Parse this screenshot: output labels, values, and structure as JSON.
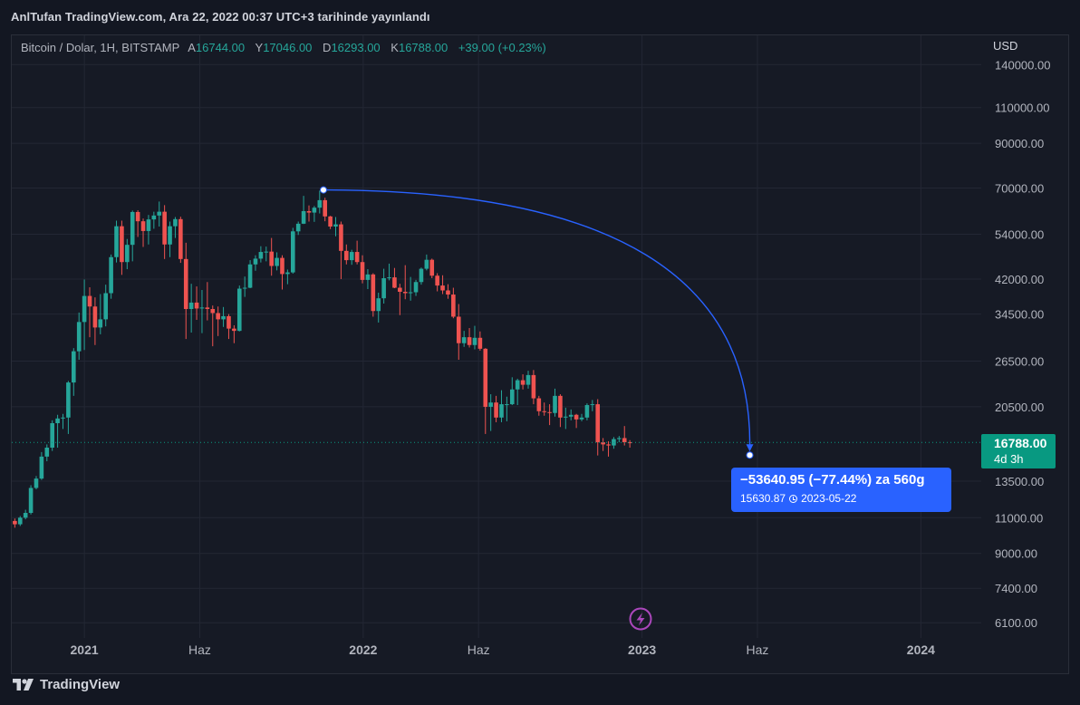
{
  "header": {
    "published_text": "AnlTufan TradingView.com, Ara 22, 2022 00:37 UTC+3 tarihinde yayınlandı"
  },
  "legend": {
    "symbol": "Bitcoin / Dolar, 1H, BITSTAMP",
    "open_label": "A",
    "open": "16744.00",
    "high_label": "Y",
    "high": "17046.00",
    "low_label": "D",
    "low": "16293.00",
    "close_label": "K",
    "close": "16788.00",
    "change": "+39.00 (+0.23%)"
  },
  "price_axis": {
    "currency": "USD",
    "ticks": [
      "140000.00",
      "110000.00",
      "90000.00",
      "70000.00",
      "54000.00",
      "42000.00",
      "34500.00",
      "26500.00",
      "20500.00",
      "13500.00",
      "11000.00",
      "9000.00",
      "7400.00",
      "6100.00"
    ]
  },
  "time_axis": {
    "ticks": [
      "2021",
      "Haz",
      "2022",
      "Haz",
      "2023",
      "Haz",
      "2024"
    ]
  },
  "last_price": {
    "price": "16788.00",
    "countdown": "4d 3h"
  },
  "projection": {
    "change_text": "−53640.95 (−77.44%) za 560g",
    "target_price": "15630.87",
    "target_date": "2023-05-22",
    "from_price": 69271.82,
    "from_date": "2021-11-10"
  },
  "brand": {
    "name": "TradingView"
  },
  "colors": {
    "up": "#26a69a",
    "down": "#ef5350",
    "background": "#161a25",
    "arc": "#2962ff",
    "last_price_badge": "#089981",
    "flash_icon": "#9c27b0"
  },
  "chart_data": {
    "type": "candlestick",
    "title": "Bitcoin / Dolar, 1H, BITSTAMP",
    "y_scale": "log",
    "ylim": [
      5600,
      165000
    ],
    "xlim": [
      "2020-09-28",
      "2024-03-20"
    ],
    "candles": [
      {
        "d": "2020-10-02",
        "o": 10800,
        "h": 10950,
        "l": 10400,
        "c": 10600
      },
      {
        "d": "2020-10-09",
        "o": 10600,
        "h": 11100,
        "l": 10500,
        "c": 11000
      },
      {
        "d": "2020-10-16",
        "o": 11000,
        "h": 11500,
        "l": 10900,
        "c": 11300
      },
      {
        "d": "2020-10-23",
        "o": 11300,
        "h": 13200,
        "l": 11200,
        "c": 13000
      },
      {
        "d": "2020-10-30",
        "o": 13000,
        "h": 13900,
        "l": 12900,
        "c": 13700
      },
      {
        "d": "2020-11-06",
        "o": 13700,
        "h": 15900,
        "l": 13600,
        "c": 15500
      },
      {
        "d": "2020-11-13",
        "o": 15500,
        "h": 16600,
        "l": 15100,
        "c": 16300
      },
      {
        "d": "2020-11-20",
        "o": 16300,
        "h": 19000,
        "l": 16000,
        "c": 18700
      },
      {
        "d": "2020-11-27",
        "o": 18700,
        "h": 19600,
        "l": 16300,
        "c": 19200
      },
      {
        "d": "2020-12-04",
        "o": 19200,
        "h": 19700,
        "l": 18100,
        "c": 19300
      },
      {
        "d": "2020-12-11",
        "o": 19300,
        "h": 23700,
        "l": 17600,
        "c": 23500
      },
      {
        "d": "2020-12-18",
        "o": 23500,
        "h": 28500,
        "l": 21800,
        "c": 28000
      },
      {
        "d": "2020-12-25",
        "o": 28000,
        "h": 34800,
        "l": 26700,
        "c": 33000
      },
      {
        "d": "2021-01-01",
        "o": 33000,
        "h": 41900,
        "l": 28200,
        "c": 38200
      },
      {
        "d": "2021-01-08",
        "o": 38200,
        "h": 40100,
        "l": 30300,
        "c": 36000
      },
      {
        "d": "2021-01-15",
        "o": 36000,
        "h": 37900,
        "l": 29000,
        "c": 32000
      },
      {
        "d": "2021-01-22",
        "o": 32000,
        "h": 38600,
        "l": 30800,
        "c": 33500
      },
      {
        "d": "2021-01-29",
        "o": 33500,
        "h": 40700,
        "l": 32200,
        "c": 38800
      },
      {
        "d": "2021-02-05",
        "o": 38800,
        "h": 48200,
        "l": 37600,
        "c": 47500
      },
      {
        "d": "2021-02-12",
        "o": 47500,
        "h": 58300,
        "l": 46100,
        "c": 56500
      },
      {
        "d": "2021-02-19",
        "o": 56500,
        "h": 58300,
        "l": 43000,
        "c": 46200
      },
      {
        "d": "2021-02-26",
        "o": 46200,
        "h": 52600,
        "l": 44400,
        "c": 50900
      },
      {
        "d": "2021-03-05",
        "o": 50900,
        "h": 61700,
        "l": 46400,
        "c": 61200
      },
      {
        "d": "2021-03-12",
        "o": 61200,
        "h": 61800,
        "l": 53200,
        "c": 58100
      },
      {
        "d": "2021-03-19",
        "o": 58100,
        "h": 59000,
        "l": 50300,
        "c": 55000
      },
      {
        "d": "2021-03-26",
        "o": 55000,
        "h": 60200,
        "l": 51000,
        "c": 58700
      },
      {
        "d": "2021-04-02",
        "o": 58700,
        "h": 61300,
        "l": 55700,
        "c": 60000
      },
      {
        "d": "2021-04-09",
        "o": 60000,
        "h": 64900,
        "l": 56400,
        "c": 61300
      },
      {
        "d": "2021-04-16",
        "o": 61300,
        "h": 63600,
        "l": 47000,
        "c": 51000
      },
      {
        "d": "2021-04-23",
        "o": 51000,
        "h": 58000,
        "l": 47500,
        "c": 56500
      },
      {
        "d": "2021-04-30",
        "o": 56500,
        "h": 59500,
        "l": 52900,
        "c": 58800
      },
      {
        "d": "2021-05-07",
        "o": 58800,
        "h": 59600,
        "l": 46000,
        "c": 47000
      },
      {
        "d": "2021-05-14",
        "o": 47000,
        "h": 51500,
        "l": 30000,
        "c": 35500
      },
      {
        "d": "2021-05-21",
        "o": 35500,
        "h": 40900,
        "l": 31100,
        "c": 36800
      },
      {
        "d": "2021-05-28",
        "o": 36800,
        "h": 40300,
        "l": 33400,
        "c": 35600
      },
      {
        "d": "2021-06-04",
        "o": 35600,
        "h": 39500,
        "l": 31000,
        "c": 35800
      },
      {
        "d": "2021-06-11",
        "o": 35800,
        "h": 41300,
        "l": 33300,
        "c": 35500
      },
      {
        "d": "2021-06-18",
        "o": 35500,
        "h": 36200,
        "l": 28800,
        "c": 34700
      },
      {
        "d": "2021-06-25",
        "o": 34700,
        "h": 36000,
        "l": 30500,
        "c": 33500
      },
      {
        "d": "2021-07-02",
        "o": 33500,
        "h": 35900,
        "l": 32100,
        "c": 34100
      },
      {
        "d": "2021-07-09",
        "o": 34100,
        "h": 34500,
        "l": 30000,
        "c": 31800
      },
      {
        "d": "2021-07-16",
        "o": 31800,
        "h": 32400,
        "l": 29300,
        "c": 31400
      },
      {
        "d": "2021-07-23",
        "o": 31400,
        "h": 40500,
        "l": 31300,
        "c": 39800
      },
      {
        "d": "2021-07-30",
        "o": 39800,
        "h": 42600,
        "l": 38000,
        "c": 40000
      },
      {
        "d": "2021-08-06",
        "o": 40000,
        "h": 46700,
        "l": 39900,
        "c": 45600
      },
      {
        "d": "2021-08-13",
        "o": 45600,
        "h": 48000,
        "l": 44000,
        "c": 47100
      },
      {
        "d": "2021-08-20",
        "o": 47100,
        "h": 50500,
        "l": 46100,
        "c": 48900
      },
      {
        "d": "2021-08-27",
        "o": 48900,
        "h": 50400,
        "l": 46400,
        "c": 49000
      },
      {
        "d": "2021-09-03",
        "o": 49000,
        "h": 52900,
        "l": 42800,
        "c": 45200
      },
      {
        "d": "2021-09-10",
        "o": 45200,
        "h": 48800,
        "l": 44100,
        "c": 47300
      },
      {
        "d": "2021-09-17",
        "o": 47300,
        "h": 48000,
        "l": 39600,
        "c": 43200
      },
      {
        "d": "2021-09-24",
        "o": 43200,
        "h": 44300,
        "l": 40800,
        "c": 43600
      },
      {
        "d": "2021-10-01",
        "o": 43600,
        "h": 56000,
        "l": 43300,
        "c": 54900
      },
      {
        "d": "2021-10-08",
        "o": 54900,
        "h": 58000,
        "l": 53800,
        "c": 57300
      },
      {
        "d": "2021-10-15",
        "o": 57300,
        "h": 67000,
        "l": 57200,
        "c": 61500
      },
      {
        "d": "2021-10-22",
        "o": 61500,
        "h": 63500,
        "l": 58000,
        "c": 61000
      },
      {
        "d": "2021-10-29",
        "o": 61000,
        "h": 63300,
        "l": 57900,
        "c": 62700
      },
      {
        "d": "2021-11-05",
        "o": 62700,
        "h": 69000,
        "l": 60700,
        "c": 65400
      },
      {
        "d": "2021-11-12",
        "o": 65400,
        "h": 66300,
        "l": 58100,
        "c": 59700
      },
      {
        "d": "2021-11-19",
        "o": 59700,
        "h": 59900,
        "l": 55600,
        "c": 56400
      },
      {
        "d": "2021-11-26",
        "o": 56400,
        "h": 59500,
        "l": 53400,
        "c": 57100
      },
      {
        "d": "2021-12-03",
        "o": 57100,
        "h": 58000,
        "l": 42000,
        "c": 49200
      },
      {
        "d": "2021-12-10",
        "o": 49200,
        "h": 51000,
        "l": 45600,
        "c": 46700
      },
      {
        "d": "2021-12-17",
        "o": 46700,
        "h": 49500,
        "l": 45500,
        "c": 48900
      },
      {
        "d": "2021-12-24",
        "o": 48900,
        "h": 52100,
        "l": 45600,
        "c": 46200
      },
      {
        "d": "2021-12-31",
        "o": 46200,
        "h": 48000,
        "l": 41000,
        "c": 41800
      },
      {
        "d": "2022-01-07",
        "o": 41800,
        "h": 44400,
        "l": 39700,
        "c": 43100
      },
      {
        "d": "2022-01-14",
        "o": 43100,
        "h": 43400,
        "l": 34000,
        "c": 35100
      },
      {
        "d": "2022-01-21",
        "o": 35100,
        "h": 38900,
        "l": 32900,
        "c": 37700
      },
      {
        "d": "2022-01-28",
        "o": 37700,
        "h": 44500,
        "l": 36600,
        "c": 42200
      },
      {
        "d": "2022-02-04",
        "o": 42200,
        "h": 45800,
        "l": 41700,
        "c": 42400
      },
      {
        "d": "2022-02-11",
        "o": 42400,
        "h": 44700,
        "l": 39900,
        "c": 40000
      },
      {
        "d": "2022-02-18",
        "o": 40000,
        "h": 40900,
        "l": 34300,
        "c": 39100
      },
      {
        "d": "2022-02-25",
        "o": 39100,
        "h": 45400,
        "l": 37500,
        "c": 38800
      },
      {
        "d": "2022-03-04",
        "o": 38800,
        "h": 42500,
        "l": 37200,
        "c": 39000
      },
      {
        "d": "2022-03-11",
        "o": 39000,
        "h": 41800,
        "l": 38200,
        "c": 41300
      },
      {
        "d": "2022-03-18",
        "o": 41300,
        "h": 44800,
        "l": 40700,
        "c": 44500
      },
      {
        "d": "2022-03-25",
        "o": 44500,
        "h": 48200,
        "l": 44100,
        "c": 46800
      },
      {
        "d": "2022-04-01",
        "o": 46800,
        "h": 47100,
        "l": 42200,
        "c": 42800
      },
      {
        "d": "2022-04-08",
        "o": 42800,
        "h": 43400,
        "l": 39200,
        "c": 40500
      },
      {
        "d": "2022-04-15",
        "o": 40500,
        "h": 42900,
        "l": 38600,
        "c": 39400
      },
      {
        "d": "2022-04-22",
        "o": 39400,
        "h": 40800,
        "l": 37600,
        "c": 38500
      },
      {
        "d": "2022-04-29",
        "o": 38500,
        "h": 40000,
        "l": 33700,
        "c": 34000
      },
      {
        "d": "2022-05-06",
        "o": 34000,
        "h": 36500,
        "l": 26700,
        "c": 29300
      },
      {
        "d": "2022-05-13",
        "o": 29300,
        "h": 31400,
        "l": 28700,
        "c": 30300
      },
      {
        "d": "2022-05-20",
        "o": 30300,
        "h": 31900,
        "l": 28600,
        "c": 29000
      },
      {
        "d": "2022-05-27",
        "o": 29000,
        "h": 32300,
        "l": 28300,
        "c": 30200
      },
      {
        "d": "2022-06-03",
        "o": 30200,
        "h": 31300,
        "l": 28100,
        "c": 28400
      },
      {
        "d": "2022-06-10",
        "o": 28400,
        "h": 28500,
        "l": 17600,
        "c": 20500
      },
      {
        "d": "2022-06-17",
        "o": 20500,
        "h": 22000,
        "l": 17900,
        "c": 21000
      },
      {
        "d": "2022-06-24",
        "o": 21000,
        "h": 21800,
        "l": 18800,
        "c": 19300
      },
      {
        "d": "2022-07-01",
        "o": 19300,
        "h": 22500,
        "l": 18800,
        "c": 20800
      },
      {
        "d": "2022-07-08",
        "o": 20800,
        "h": 21700,
        "l": 18900,
        "c": 20800
      },
      {
        "d": "2022-07-15",
        "o": 20800,
        "h": 24200,
        "l": 20700,
        "c": 22600
      },
      {
        "d": "2022-07-22",
        "o": 22600,
        "h": 24000,
        "l": 20700,
        "c": 23800
      },
      {
        "d": "2022-07-29",
        "o": 23800,
        "h": 24600,
        "l": 22600,
        "c": 23200
      },
      {
        "d": "2022-08-05",
        "o": 23200,
        "h": 25100,
        "l": 22700,
        "c": 24500
      },
      {
        "d": "2022-08-12",
        "o": 24500,
        "h": 25200,
        "l": 20800,
        "c": 21500
      },
      {
        "d": "2022-08-19",
        "o": 21500,
        "h": 21800,
        "l": 19500,
        "c": 20000
      },
      {
        "d": "2022-08-26",
        "o": 20000,
        "h": 21000,
        "l": 19500,
        "c": 19900
      },
      {
        "d": "2022-09-02",
        "o": 19900,
        "h": 20800,
        "l": 18500,
        "c": 19800
      },
      {
        "d": "2022-09-09",
        "o": 19800,
        "h": 22700,
        "l": 19400,
        "c": 21800
      },
      {
        "d": "2022-09-16",
        "o": 21800,
        "h": 22000,
        "l": 18300,
        "c": 19300
      },
      {
        "d": "2022-09-23",
        "o": 19300,
        "h": 20400,
        "l": 18100,
        "c": 19400
      },
      {
        "d": "2022-09-30",
        "o": 19400,
        "h": 20200,
        "l": 19000,
        "c": 19600
      },
      {
        "d": "2022-10-07",
        "o": 19600,
        "h": 19700,
        "l": 18200,
        "c": 19100
      },
      {
        "d": "2022-10-14",
        "o": 19100,
        "h": 19700,
        "l": 18900,
        "c": 19300
      },
      {
        "d": "2022-10-21",
        "o": 19300,
        "h": 20900,
        "l": 19000,
        "c": 20700
      },
      {
        "d": "2022-10-28",
        "o": 20700,
        "h": 21300,
        "l": 20000,
        "c": 20800
      },
      {
        "d": "2022-11-04",
        "o": 20800,
        "h": 21400,
        "l": 15600,
        "c": 16800
      },
      {
        "d": "2022-11-11",
        "o": 16800,
        "h": 17200,
        "l": 16000,
        "c": 16600
      },
      {
        "d": "2022-11-18",
        "o": 16600,
        "h": 16900,
        "l": 15500,
        "c": 16500
      },
      {
        "d": "2022-11-25",
        "o": 16500,
        "h": 17300,
        "l": 16200,
        "c": 17100
      },
      {
        "d": "2022-12-02",
        "o": 17100,
        "h": 17400,
        "l": 16800,
        "c": 17200
      },
      {
        "d": "2022-12-09",
        "o": 17200,
        "h": 18400,
        "l": 16500,
        "c": 16800
      },
      {
        "d": "2022-12-16",
        "o": 16800,
        "h": 17000,
        "l": 16300,
        "c": 16788
      }
    ]
  }
}
